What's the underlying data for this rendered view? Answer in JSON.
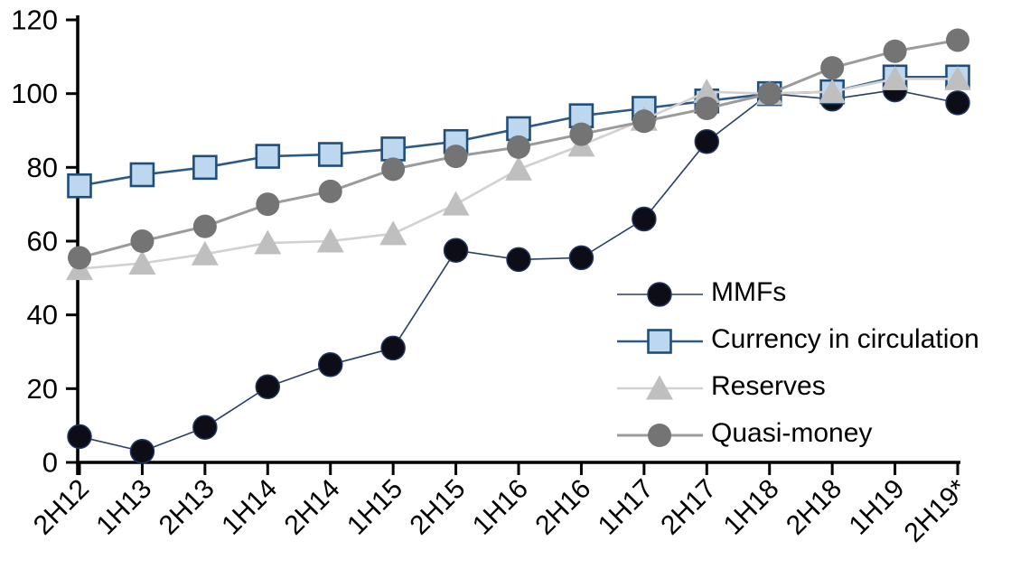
{
  "chart_data": {
    "type": "line",
    "title": "",
    "xlabel": "",
    "ylabel": "",
    "categories": [
      "2H12",
      "1H13",
      "2H13",
      "1H14",
      "2H14",
      "1H15",
      "2H15",
      "1H16",
      "2H16",
      "1H17",
      "2H17",
      "1H18",
      "2H18",
      "1H19",
      "2H19*"
    ],
    "series": [
      {
        "name": "MMFs",
        "marker": "circle",
        "marker_fill": "#0d0d17",
        "marker_stroke": "#24365e",
        "line_color": "#2a3f66",
        "line_width": 1.6,
        "values": [
          7,
          3,
          9.5,
          20.5,
          26.5,
          31,
          57.5,
          55,
          55.5,
          66,
          87,
          100,
          98.5,
          101,
          97.5
        ]
      },
      {
        "name": "Currency in circulation",
        "marker": "square",
        "marker_fill": "#bdd7ee",
        "marker_stroke": "#1f4e79",
        "line_color": "#2e5a87",
        "line_width": 2.6,
        "values": [
          75,
          78,
          80,
          83,
          83.5,
          85,
          87,
          90.5,
          94,
          96,
          98,
          100,
          100.5,
          104.5,
          104.5
        ]
      },
      {
        "name": "Reserves",
        "marker": "triangle",
        "marker_fill": "#bfbfbf",
        "marker_stroke": "none",
        "line_color": "#d2d0d0",
        "line_width": 2.6,
        "values": [
          52.5,
          54,
          56.5,
          59.5,
          60,
          62,
          70,
          79.5,
          86,
          93,
          100.5,
          100,
          100.5,
          104,
          104
        ]
      },
      {
        "name": "Quasi-money",
        "marker": "circle",
        "marker_fill": "#747474",
        "marker_stroke": "none",
        "line_color": "#9b9b9b",
        "line_width": 3,
        "values": [
          55.5,
          60,
          64,
          70,
          73.5,
          79.5,
          83,
          85.5,
          89,
          92.5,
          96,
          100,
          107,
          111.5,
          114.5
        ]
      }
    ],
    "y_ticks": [
      0,
      20,
      40,
      60,
      80,
      100,
      120
    ],
    "ylim": [
      0,
      120
    ],
    "grid": "off",
    "legend_position": "inside-right",
    "axis_color": "#000000",
    "tick_label_color": "#000000"
  }
}
